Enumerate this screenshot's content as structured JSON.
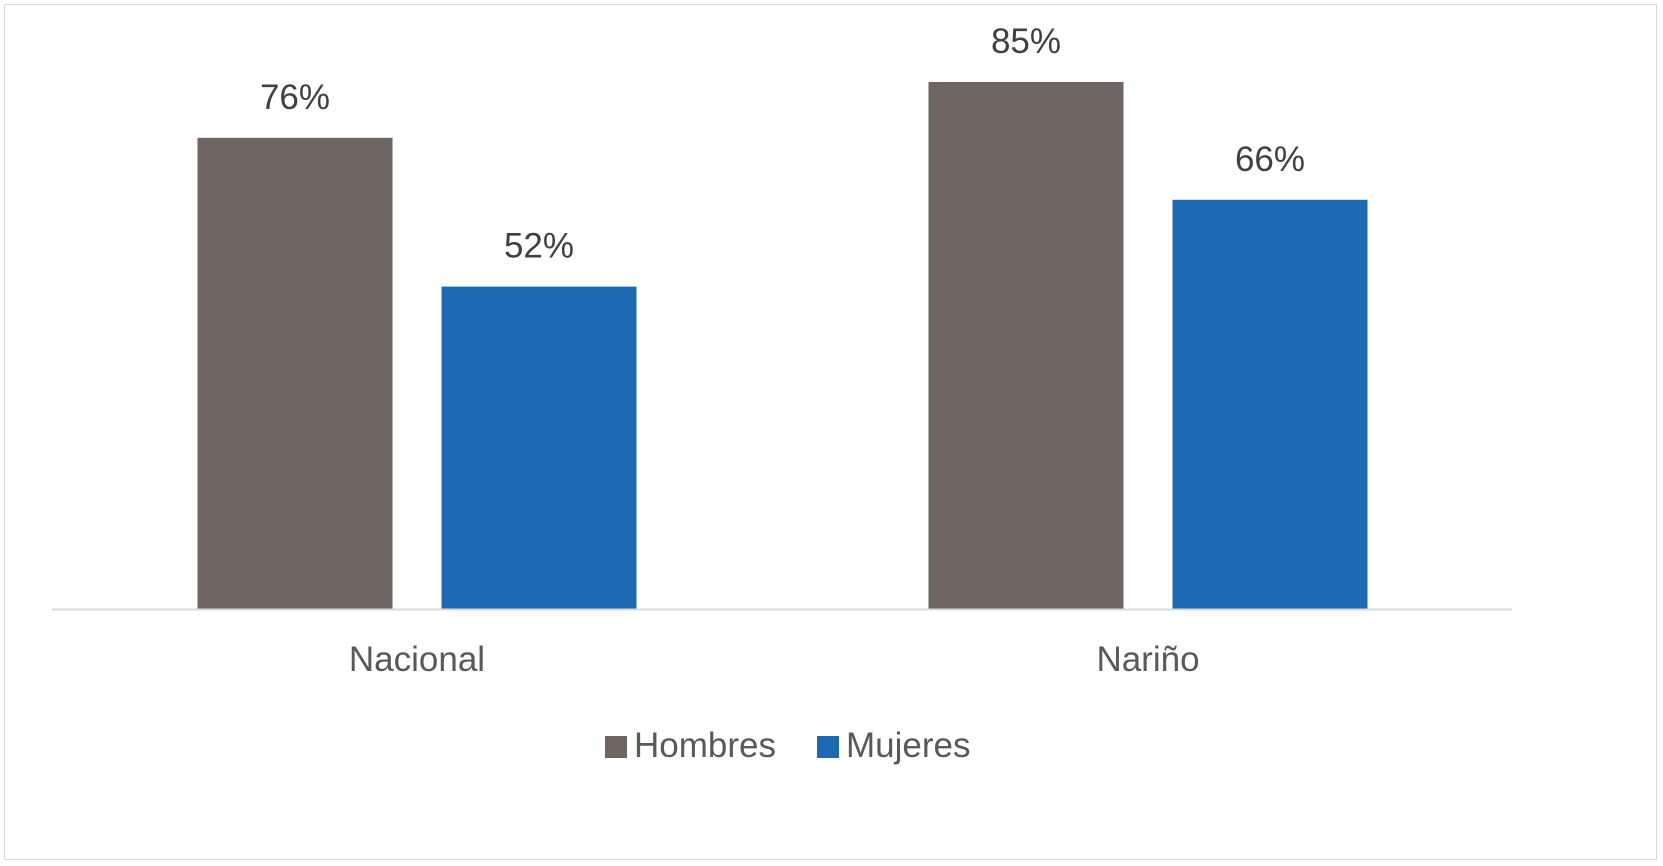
{
  "chart_data": {
    "type": "bar",
    "title": "",
    "xlabel": "",
    "ylabel": "",
    "categories": [
      "Nacional",
      "Nariño"
    ],
    "series": [
      {
        "name": "Hombres",
        "values": [
          76,
          85
        ],
        "labels": [
          "76%",
          "85%"
        ],
        "color": "#6e6462"
      },
      {
        "name": "Mujeres",
        "values": [
          52,
          66
        ],
        "labels": [
          "52%",
          "66%"
        ],
        "color": "#1e69b3"
      }
    ],
    "ylim": [
      0,
      100
    ],
    "unit": "%",
    "grid": false,
    "legend": "bottom",
    "axis_line_color": "#d9d9d9"
  }
}
